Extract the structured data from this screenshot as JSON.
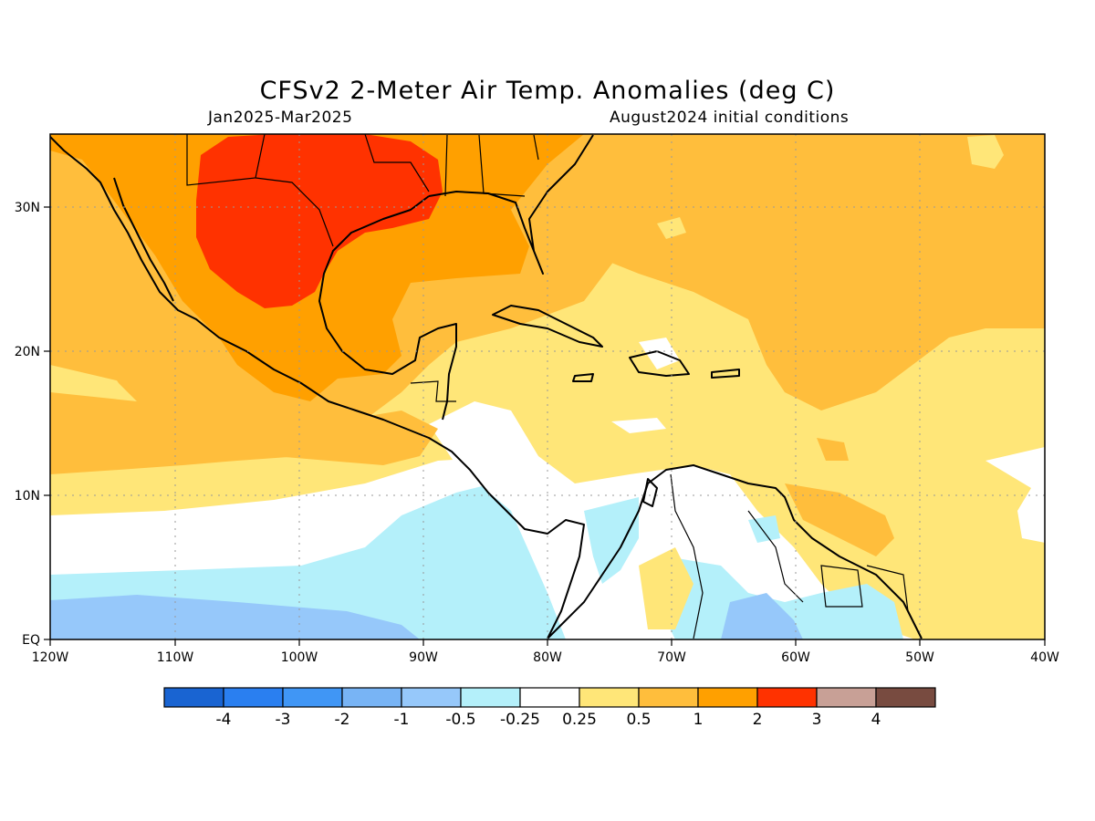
{
  "header": {
    "title": "CFSv2 2-Meter Air Temp. Anomalies (deg C)",
    "period": "Jan2025-Mar2025",
    "initial_conditions": "August2024 initial conditions"
  },
  "axes": {
    "lon_labels": [
      "120W",
      "110W",
      "100W",
      "90W",
      "80W",
      "70W",
      "60W",
      "50W",
      "40W"
    ],
    "lat_labels": [
      "EQ",
      "10N",
      "20N",
      "30N"
    ]
  },
  "colorbar": {
    "colors": [
      "#1964d2",
      "#2a7ff0",
      "#4096f5",
      "#78b4f5",
      "#96c8fa",
      "#b4f0fa",
      "#ffffff",
      "#ffe678",
      "#ffbe3c",
      "#ffa000",
      "#ff3200",
      "#c8a096",
      "#784b40"
    ],
    "labels": [
      "-4",
      "-3",
      "-2",
      "-1",
      "-0.5",
      "-0.25",
      "0.25",
      "0.5",
      "1",
      "2",
      "3",
      "4"
    ]
  }
}
